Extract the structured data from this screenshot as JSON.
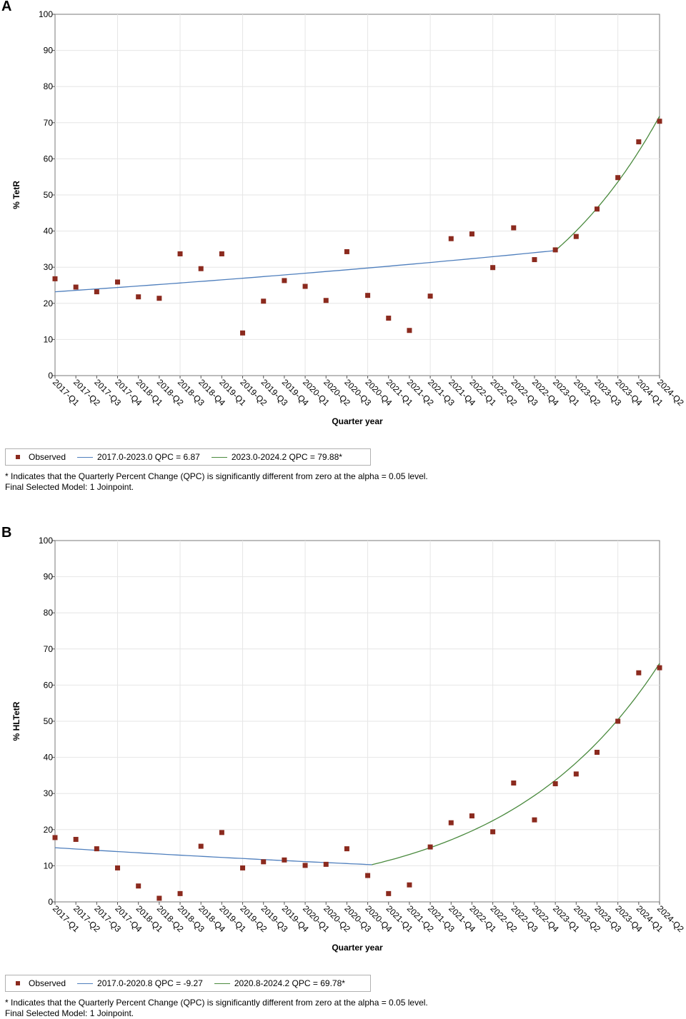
{
  "chart_data": [
    {
      "panel": "A",
      "type": "scatter",
      "ylabel": "% TetR",
      "xlabel": "Quarter year",
      "ylim": [
        0,
        100
      ],
      "yticks": [
        0,
        10,
        20,
        30,
        40,
        50,
        60,
        70,
        80,
        90,
        100
      ],
      "categories": [
        "2017-Q1",
        "2017-Q2",
        "2017-Q3",
        "2017-Q4",
        "2018-Q1",
        "2018-Q2",
        "2018-Q3",
        "2018-Q4",
        "2019-Q1",
        "2019-Q2",
        "2019-Q3",
        "2019-Q4",
        "2020-Q1",
        "2020-Q2",
        "2020-Q3",
        "2020-Q4",
        "2021-Q1",
        "2021-Q2",
        "2021-Q3",
        "2021-Q4",
        "2022-Q1",
        "2022-Q2",
        "2022-Q3",
        "2022-Q4",
        "2023-Q1",
        "2023-Q2",
        "2023-Q3",
        "2023-Q4",
        "2024-Q1",
        "2024-Q2"
      ],
      "observed": [
        26.8,
        24.5,
        23.2,
        25.9,
        21.8,
        21.4,
        33.7,
        29.6,
        33.7,
        11.8,
        20.6,
        26.3,
        24.7,
        20.8,
        34.3,
        22.2,
        15.9,
        12.5,
        22.0,
        37.9,
        39.2,
        29.9,
        40.9,
        32.1,
        34.8,
        38.5,
        46.1,
        54.8,
        64.7,
        70.4
      ],
      "segments": [
        {
          "label": "2017.0-2023.0 QPC  =  6.87",
          "color": "#4f7fbd",
          "from": 0,
          "to": 24,
          "start": 23.2,
          "end": 34.6
        },
        {
          "label": "2023.0-2024.2 QPC  = 79.88*",
          "color": "#4a8a3e",
          "from": 24,
          "to": 29,
          "start": 34.6,
          "end": 71.8
        }
      ],
      "legend_observed": "Observed",
      "footnote": "* Indicates that the Quarterly Percent Change (QPC) is significantly different from zero at the alpha = 0.05 level.",
      "model": "Final Selected Model: 1 Joinpoint."
    },
    {
      "panel": "B",
      "type": "scatter",
      "ylabel": "% HLTetR",
      "xlabel": "Quarter year",
      "ylim": [
        0,
        100
      ],
      "yticks": [
        0,
        10,
        20,
        30,
        40,
        50,
        60,
        70,
        80,
        90,
        100
      ],
      "categories": [
        "2017-Q1",
        "2017-Q2",
        "2017-Q3",
        "2017-Q4",
        "2018-Q1",
        "2018-Q2",
        "2018-Q3",
        "2018-Q4",
        "2019-Q1",
        "2019-Q2",
        "2019-Q3",
        "2019-Q4",
        "2020-Q1",
        "2020-Q2",
        "2020-Q3",
        "2020-Q4",
        "2021-Q1",
        "2021-Q2",
        "2021-Q3",
        "2021-Q4",
        "2022-Q1",
        "2022-Q2",
        "2022-Q3",
        "2022-Q4",
        "2023-Q1",
        "2023-Q2",
        "2023-Q3",
        "2023-Q4",
        "2024-Q1",
        "2024-Q2"
      ],
      "observed": [
        17.8,
        17.3,
        14.7,
        9.4,
        4.4,
        1.0,
        2.3,
        15.4,
        19.2,
        9.4,
        11.1,
        11.6,
        10.1,
        10.4,
        14.7,
        7.3,
        2.3,
        4.7,
        15.2,
        21.9,
        23.8,
        19.4,
        32.9,
        22.7,
        32.7,
        35.4,
        41.4,
        50.0,
        63.4,
        64.8
      ],
      "segments": [
        {
          "label": "2017.0-2020.8 QPC  = -9.27",
          "color": "#4f7fbd",
          "from": 0,
          "to": 15.2,
          "start": 15.0,
          "end": 10.3
        },
        {
          "label": "2020.8-2024.2 QPC  = 69.78*",
          "color": "#4a8a3e",
          "from": 15.2,
          "to": 29,
          "start": 10.3,
          "end": 66.0
        }
      ],
      "legend_observed": "Observed",
      "footnote": "* Indicates that the Quarterly Percent Change (QPC) is significantly different from zero at the alpha = 0.05 level.",
      "model": "Final Selected Model: 1 Joinpoint."
    }
  ],
  "panels": {
    "A": {
      "letter": "A"
    },
    "B": {
      "letter": "B"
    }
  }
}
